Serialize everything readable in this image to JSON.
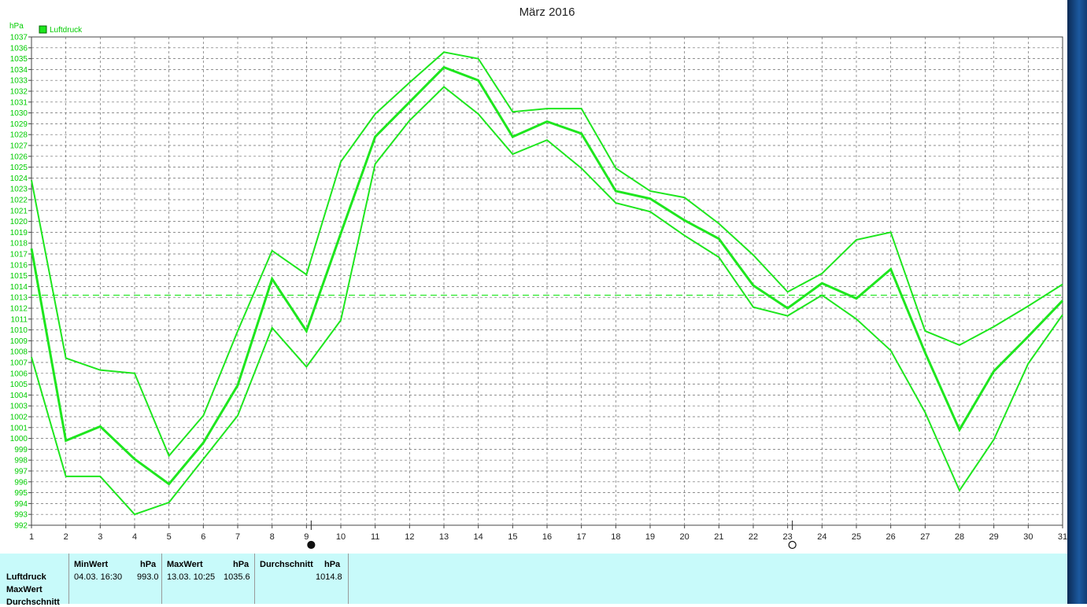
{
  "chart_data": {
    "type": "line",
    "title": "März 2016",
    "ylabel": "hPa",
    "ylim": [
      992,
      1037
    ],
    "xlim": [
      1,
      31
    ],
    "yticks_step": 1,
    "grid": true,
    "legend": {
      "label": "Luftdruck",
      "position": "top-left"
    },
    "x": [
      1,
      2,
      3,
      4,
      5,
      6,
      7,
      8,
      9,
      10,
      11,
      12,
      13,
      14,
      15,
      16,
      17,
      18,
      19,
      20,
      21,
      22,
      23,
      24,
      25,
      26,
      27,
      28,
      29,
      30,
      31
    ],
    "series": [
      {
        "name": "Luftdruck",
        "role": "mean",
        "values": [
          1017.5,
          999.8,
          1001.1,
          998.1,
          995.8,
          999.6,
          1004.9,
          1014.7,
          1009.9,
          1018.9,
          1027.8,
          1031.0,
          1034.2,
          1033.0,
          1027.8,
          1029.2,
          1028.1,
          1022.8,
          1022.1,
          1020.1,
          1018.4,
          1014.1,
          1012.0,
          1014.3,
          1012.9,
          1015.6,
          1007.9,
          1000.8,
          1006.2,
          1009.4,
          1012.7
        ]
      },
      {
        "role": "max",
        "values": [
          1023.8,
          1007.4,
          1006.3,
          1006.0,
          998.4,
          1002.1,
          1009.9,
          1017.3,
          1015.1,
          1025.5,
          1029.9,
          1032.8,
          1035.6,
          1035.0,
          1030.1,
          1030.4,
          1030.4,
          1024.9,
          1022.8,
          1022.2,
          1019.8,
          1016.9,
          1013.5,
          1015.2,
          1018.3,
          1019.0,
          1009.9,
          1008.6,
          1010.3,
          1012.2,
          1014.2
        ]
      },
      {
        "role": "min",
        "values": [
          1007.5,
          996.5,
          996.5,
          993.0,
          994.1,
          998.1,
          1002.1,
          1010.2,
          1006.6,
          1010.9,
          1025.3,
          1029.3,
          1032.4,
          1029.9,
          1026.2,
          1027.5,
          1024.9,
          1021.7,
          1020.9,
          1018.7,
          1016.7,
          1012.1,
          1011.3,
          1013.2,
          1011.0,
          1008.1,
          1002.4,
          995.2,
          999.9,
          1006.9,
          1011.4
        ]
      }
    ],
    "reference_line": 1013.2,
    "moon_phases": [
      {
        "day": 9,
        "phase": "new-moon"
      },
      {
        "day": 23,
        "phase": "full-moon"
      }
    ],
    "colors": {
      "line": "#1ee61e",
      "grid": "#6a6a6a",
      "axis_text": "#00cc00",
      "background": "#ffffff"
    }
  },
  "stats": {
    "row_labels": [
      "Luftdruck",
      "MaxWert",
      "Durchschnitt"
    ],
    "min": {
      "header": "MinWert",
      "unit": "hPa",
      "when": "04.03.  16:30",
      "value": "993.0"
    },
    "max": {
      "header": "MaxWert",
      "unit": "hPa",
      "when": "13.03.  10:25",
      "value": "1035.6"
    },
    "avg": {
      "header": "Durchschnitt",
      "unit": "hPa",
      "value": "1014.8"
    }
  }
}
